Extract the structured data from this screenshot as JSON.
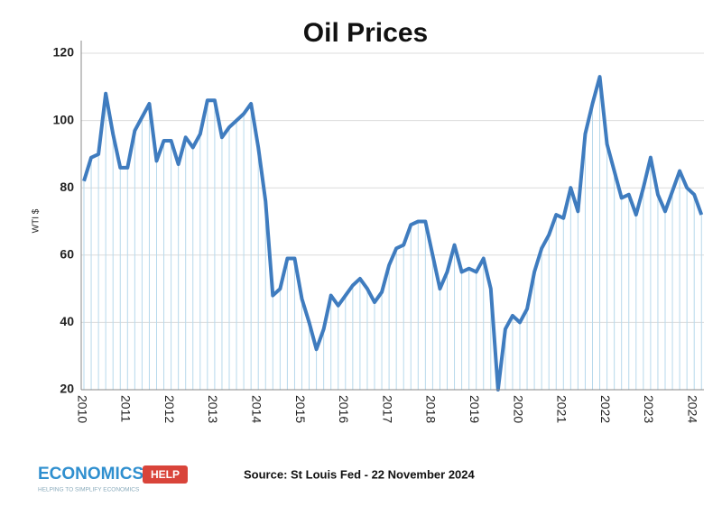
{
  "chart_data": {
    "type": "line",
    "title": "Oil Prices",
    "ylabel": "WTI $",
    "categories": [
      "2010",
      null,
      null,
      null,
      null,
      null,
      "2011",
      null,
      null,
      null,
      null,
      null,
      "2012",
      null,
      null,
      null,
      null,
      null,
      "2013",
      null,
      null,
      null,
      null,
      null,
      "2014",
      null,
      null,
      null,
      null,
      null,
      "2015",
      null,
      null,
      null,
      null,
      null,
      "2016",
      null,
      null,
      null,
      null,
      null,
      "2017",
      null,
      null,
      null,
      null,
      null,
      "2018",
      null,
      null,
      null,
      null,
      null,
      "2019",
      null,
      null,
      null,
      null,
      null,
      "2020",
      null,
      null,
      null,
      null,
      null,
      "2021",
      null,
      null,
      null,
      null,
      null,
      "2022",
      null,
      null,
      null,
      null,
      null,
      "2023",
      null,
      null,
      null,
      null,
      null,
      "2024",
      null
    ],
    "values": [
      82,
      89,
      90,
      108,
      96,
      86,
      86,
      97,
      101,
      105,
      88,
      94,
      94,
      87,
      95,
      92,
      96,
      106,
      106,
      95,
      98,
      100,
      102,
      105,
      92,
      76,
      48,
      50,
      59,
      59,
      47,
      40,
      32,
      38,
      48,
      45,
      48,
      51,
      53,
      50,
      46,
      49,
      57,
      62,
      63,
      69,
      70,
      70,
      60,
      50,
      55,
      63,
      55,
      56,
      55,
      59,
      50,
      20,
      38,
      42,
      40,
      44,
      55,
      62,
      66,
      72,
      71,
      80,
      73,
      96,
      105,
      113,
      93,
      85,
      77,
      78,
      72,
      80,
      89,
      78,
      73,
      79,
      85,
      80,
      78,
      72
    ],
    "color": "#3f7cbf",
    "ylim": [
      20,
      120
    ],
    "yticks": [
      20,
      40,
      60,
      80,
      100,
      120
    ],
    "grid": true,
    "source": "Source: St Louis Fed - 22 November 2024",
    "logo": {
      "text": "ECONOMICS",
      "badge": "HELP",
      "tagline": "HELPING TO SIMPLIFY ECONOMICS"
    }
  }
}
